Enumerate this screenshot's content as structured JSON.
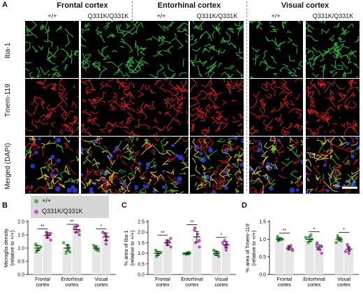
{
  "panel_letters": {
    "a": "A",
    "b": "B",
    "c": "C",
    "d": "D"
  },
  "regions": [
    "Frontal cortex",
    "Entorhinal cortex",
    "Visual cortex"
  ],
  "genotypes": [
    "+/+",
    "Q331K/Q331K"
  ],
  "row_labels": [
    "Iba-1",
    "Tmem-119",
    "Merged (DAPI)"
  ],
  "colors": {
    "wt": "#4caf50",
    "mut": "#c052c0",
    "bar": "#e6e6e6",
    "iba1": "#2ecc40",
    "tmem119": "#e8231d",
    "merged_overlap": "#e8d83a",
    "dapi": "#3a3ad8"
  },
  "legend": {
    "wt": "+/+",
    "mut": "Q331K/Q331K"
  },
  "chart_data": [
    {
      "type": "bar",
      "panel": "B",
      "ylabel": "Microglia density (relative to +/+)",
      "ylim": [
        0,
        2.0
      ],
      "yticks": [
        "0.0",
        "0.5",
        "1.0",
        "1.5",
        "2.0"
      ],
      "categories": [
        "Frontal cortex",
        "Entorhinal cortex",
        "Visual cortex"
      ],
      "series": [
        {
          "name": "+/+",
          "values": [
            1.0,
            1.0,
            1.0
          ],
          "sem": [
            0.1,
            0.12,
            0.08
          ],
          "points": [
            [
              0.85,
              1.15,
              1.05,
              0.9,
              0.95,
              1.1
            ],
            [
              0.8,
              1.1,
              0.95,
              1.2,
              0.85,
              1.05
            ],
            [
              0.9,
              1.05,
              1.0,
              0.95,
              1.1,
              0.9
            ]
          ]
        },
        {
          "name": "Q331K/Q331K",
          "values": [
            1.48,
            1.7,
            1.42
          ],
          "sem": [
            0.1,
            0.12,
            0.15
          ],
          "points": [
            [
              1.3,
              1.5,
              1.6,
              1.4,
              1.55,
              1.5
            ],
            [
              1.5,
              1.75,
              1.8,
              1.6,
              1.65,
              1.85
            ],
            [
              1.15,
              1.3,
              1.55,
              1.45,
              1.6,
              1.5
            ]
          ]
        }
      ],
      "significance": [
        "**",
        "**",
        "*"
      ]
    },
    {
      "type": "bar",
      "panel": "C",
      "ylabel": "% area of Iba-1 (relative to +/+)",
      "ylim": [
        0,
        2.5
      ],
      "yticks": [
        "0.0",
        "0.5",
        "1.0",
        "1.5",
        "2.0",
        "2.5"
      ],
      "categories": [
        "Frontal cortex",
        "Entorhinal cortex",
        "Visual cortex"
      ],
      "series": [
        {
          "name": "+/+",
          "values": [
            1.0,
            1.0,
            1.0
          ],
          "sem": [
            0.1,
            0.05,
            0.1
          ],
          "points": [
            [
              0.85,
              1.15,
              1.05,
              0.9,
              1.0,
              1.1
            ],
            [
              0.95,
              1.0,
              1.05,
              0.98,
              1.02,
              0.97
            ],
            [
              0.85,
              1.1,
              0.95,
              1.05,
              1.15,
              0.9
            ]
          ]
        },
        {
          "name": "Q331K/Q331K",
          "values": [
            1.5,
            1.78,
            1.4
          ],
          "sem": [
            0.12,
            0.25,
            0.15
          ],
          "points": [
            [
              1.3,
              1.6,
              1.5,
              1.4,
              1.7,
              1.55
            ],
            [
              1.3,
              2.1,
              2.2,
              1.5,
              1.6,
              1.9
            ],
            [
              1.15,
              1.3,
              1.6,
              1.45,
              1.5,
              1.35
            ]
          ]
        }
      ],
      "significance": [
        "**",
        "**",
        "*"
      ]
    },
    {
      "type": "bar",
      "panel": "D",
      "ylabel": "% area of Tmem-119 (relative to +/+)",
      "ylim": [
        0,
        1.5
      ],
      "yticks": [
        "0.0",
        "0.5",
        "1.0",
        "1.5"
      ],
      "categories": [
        "Frontal cortex",
        "Entorhinal cortex",
        "Visual cortex"
      ],
      "series": [
        {
          "name": "+/+",
          "values": [
            1.0,
            1.0,
            1.0
          ],
          "sem": [
            0.04,
            0.06,
            0.05
          ],
          "points": [
            [
              0.95,
              1.05,
              1.0,
              0.98,
              1.02,
              1.08
            ],
            [
              0.9,
              1.1,
              0.95,
              1.05,
              1.0,
              1.12
            ],
            [
              0.95,
              1.05,
              1.1,
              0.98,
              0.9,
              1.02
            ]
          ]
        },
        {
          "name": "Q331K/Q331K",
          "values": [
            0.75,
            0.78,
            0.72
          ],
          "sem": [
            0.05,
            0.06,
            0.06
          ],
          "points": [
            [
              0.68,
              0.8,
              0.72,
              0.78,
              0.7,
              0.82
            ],
            [
              0.6,
              0.85,
              0.9,
              0.72,
              0.8,
              0.7
            ],
            [
              0.6,
              0.75,
              0.85,
              0.7,
              0.65,
              0.8
            ]
          ]
        }
      ],
      "significance": [
        "**",
        "*",
        "*"
      ]
    }
  ]
}
